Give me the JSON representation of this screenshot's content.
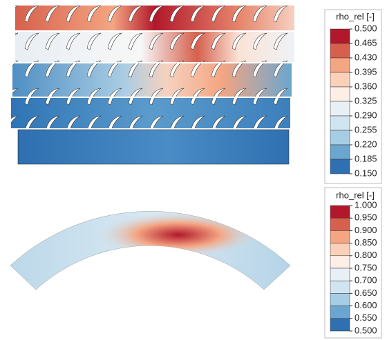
{
  "colorbars": [
    {
      "title": "rho_rel [-]",
      "ticks": [
        "0.500",
        "0.465",
        "0.430",
        "0.395",
        "0.360",
        "0.325",
        "0.290",
        "0.255",
        "0.220",
        "0.185",
        "0.150"
      ]
    },
    {
      "title": "rho_rel [-]",
      "ticks": [
        "1.000",
        "0.950",
        "0.900",
        "0.850",
        "0.800",
        "0.750",
        "0.700",
        "0.650",
        "0.600",
        "0.550",
        "0.500"
      ]
    }
  ]
}
